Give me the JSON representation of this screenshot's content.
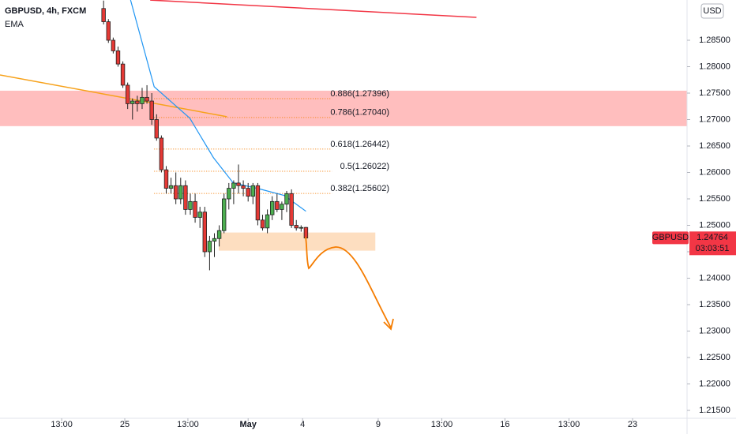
{
  "chart_data": {
    "type": "candlestick",
    "title": "GBPUSD, 4h, FXCM",
    "currency": "USD",
    "up_color": "#4caf50",
    "down_color": "#e53935",
    "xlim": [
      -21.5,
      121.1
    ],
    "ylim": [
      1.21351,
      1.29261
    ],
    "xticks": [
      {
        "value": -8.7,
        "label": "13:00"
      },
      {
        "value": 4.4,
        "label": "25"
      },
      {
        "value": 17.5,
        "label": "13:00"
      },
      {
        "value": 30,
        "label": "May"
      },
      {
        "value": 41.3,
        "label": "4"
      },
      {
        "value": 57,
        "label": "9"
      },
      {
        "value": 70.2,
        "label": "13:00"
      },
      {
        "value": 83.3,
        "label": "16"
      },
      {
        "value": 96.6,
        "label": "13:00"
      },
      {
        "value": 109.8,
        "label": "23"
      }
    ],
    "yticks": [
      {
        "value": 1.215,
        "label": "1.21500"
      },
      {
        "value": 1.22,
        "label": "1.22000"
      },
      {
        "value": 1.225,
        "label": "1.22500"
      },
      {
        "value": 1.23,
        "label": "1.23000"
      },
      {
        "value": 1.235,
        "label": "1.23500"
      },
      {
        "value": 1.24,
        "label": "1.24000"
      },
      {
        "value": 1.245,
        "label": "1.24500"
      },
      {
        "value": 1.25,
        "label": "1.25000"
      },
      {
        "value": 1.255,
        "label": "1.25500"
      },
      {
        "value": 1.26,
        "label": "1.26000"
      },
      {
        "value": 1.265,
        "label": "1.26500"
      },
      {
        "value": 1.27,
        "label": "1.27000"
      },
      {
        "value": 1.275,
        "label": "1.27500"
      },
      {
        "value": 1.28,
        "label": "1.28000"
      },
      {
        "value": 1.285,
        "label": "1.28500"
      }
    ],
    "categories": [
      null,
      null,
      null,
      null,
      null,
      null,
      null,
      null,
      null,
      null,
      null,
      null,
      null,
      null,
      null,
      null,
      null,
      null,
      null,
      null,
      null,
      null,
      null,
      null,
      null,
      null,
      null,
      null,
      null,
      null,
      null,
      null,
      null,
      null,
      null,
      null,
      null,
      null,
      null,
      null,
      null,
      null,
      null
    ],
    "open": [
      1.291,
      1.2885,
      1.285,
      1.283,
      1.2805,
      1.2765,
      1.273,
      1.2735,
      1.273,
      1.2742,
      1.2735,
      1.27,
      1.2665,
      1.2605,
      1.257,
      1.2575,
      1.255,
      1.2575,
      1.253,
      1.2545,
      1.2515,
      1.2525,
      1.245,
      1.247,
      1.2475,
      1.249,
      1.255,
      1.257,
      1.258,
      1.2575,
      1.257,
      1.2555,
      1.2575,
      1.251,
      1.2495,
      1.252,
      1.2545,
      1.253,
      1.254,
      1.256,
      1.25,
      1.2495,
      1.2496
    ],
    "high": [
      1.2925,
      1.289,
      1.2855,
      1.2838,
      1.281,
      1.277,
      1.274,
      1.2745,
      1.276,
      1.2765,
      1.275,
      1.271,
      1.267,
      1.2612,
      1.259,
      1.26,
      1.259,
      1.2585,
      1.256,
      1.256,
      1.2535,
      1.2535,
      1.248,
      1.2485,
      1.25,
      1.256,
      1.258,
      1.2585,
      1.2615,
      1.2585,
      1.258,
      1.258,
      1.258,
      1.252,
      1.253,
      1.2555,
      1.256,
      1.2545,
      1.2565,
      1.2568,
      1.251,
      1.25,
      1.2497
    ],
    "low": [
      1.288,
      1.2845,
      1.2825,
      1.28,
      1.276,
      1.272,
      1.27,
      1.2715,
      1.272,
      1.273,
      1.269,
      1.266,
      1.26,
      1.256,
      1.256,
      1.254,
      1.254,
      1.252,
      1.252,
      1.2505,
      1.2495,
      1.244,
      1.2415,
      1.244,
      1.246,
      1.2485,
      1.253,
      1.254,
      1.256,
      1.2555,
      1.2545,
      1.254,
      1.25,
      1.249,
      1.2485,
      1.251,
      1.2525,
      1.251,
      1.2525,
      1.2495,
      1.249,
      1.2488,
      1.2476
    ],
    "close": [
      1.2885,
      1.285,
      1.283,
      1.2805,
      1.2765,
      1.273,
      1.2735,
      1.273,
      1.2742,
      1.2735,
      1.27,
      1.2665,
      1.2605,
      1.257,
      1.2575,
      1.255,
      1.2575,
      1.253,
      1.2545,
      1.2515,
      1.2525,
      1.245,
      1.247,
      1.2475,
      1.249,
      1.255,
      1.257,
      1.258,
      1.2575,
      1.257,
      1.2555,
      1.2575,
      1.251,
      1.2495,
      1.252,
      1.2545,
      1.253,
      1.254,
      1.256,
      1.25,
      1.2495,
      1.2496,
      1.2476
    ],
    "ema": {
      "name": "EMA",
      "color": "#2196f3",
      "x": [
        5.6,
        10.5,
        17.9,
        22.8,
        26.9,
        32.6,
        37.5,
        42
      ],
      "values": [
        1.2926,
        1.27621,
        1.27025,
        1.2628,
        1.25802,
        1.25683,
        1.25564,
        1.25266
      ]
    },
    "zones": [
      {
        "color": "#ffb3b3",
        "x": [
          -21.5,
          121.1
        ],
        "values": [
          1.26876,
          1.27546
        ]
      },
      {
        "color": "#fdd8b5",
        "x": [
          23.9,
          56.4
        ],
        "values": [
          1.24521,
          1.24864
        ]
      }
    ],
    "lines": [
      {
        "color": "#f23645",
        "x": [
          9.67,
          77.4
        ],
        "values": [
          1.2926,
          1.28932
        ]
      },
      {
        "color": "#f7a21b",
        "x": [
          -21.5,
          25.6
        ],
        "values": [
          1.27844,
          1.27054
        ]
      }
    ],
    "fib_color": "#f57c00",
    "fib_x": [
      10.5,
      47.4
    ],
    "fib_levels": [
      {
        "value": 1.27396,
        "label": "0.886(1.27396)"
      },
      {
        "value": 1.2704,
        "label": "0.786(1.27040)"
      },
      {
        "value": 1.26442,
        "label": "0.618(1.26442)"
      },
      {
        "value": 1.26022,
        "label": "0.5(1.26022)"
      },
      {
        "value": 1.25602,
        "label": "0.382(1.25602)"
      }
    ],
    "price_tag": {
      "symbol": "GBPUSD",
      "value": 1.24764,
      "countdown": "03:03:51",
      "color": "#f23645"
    }
  }
}
